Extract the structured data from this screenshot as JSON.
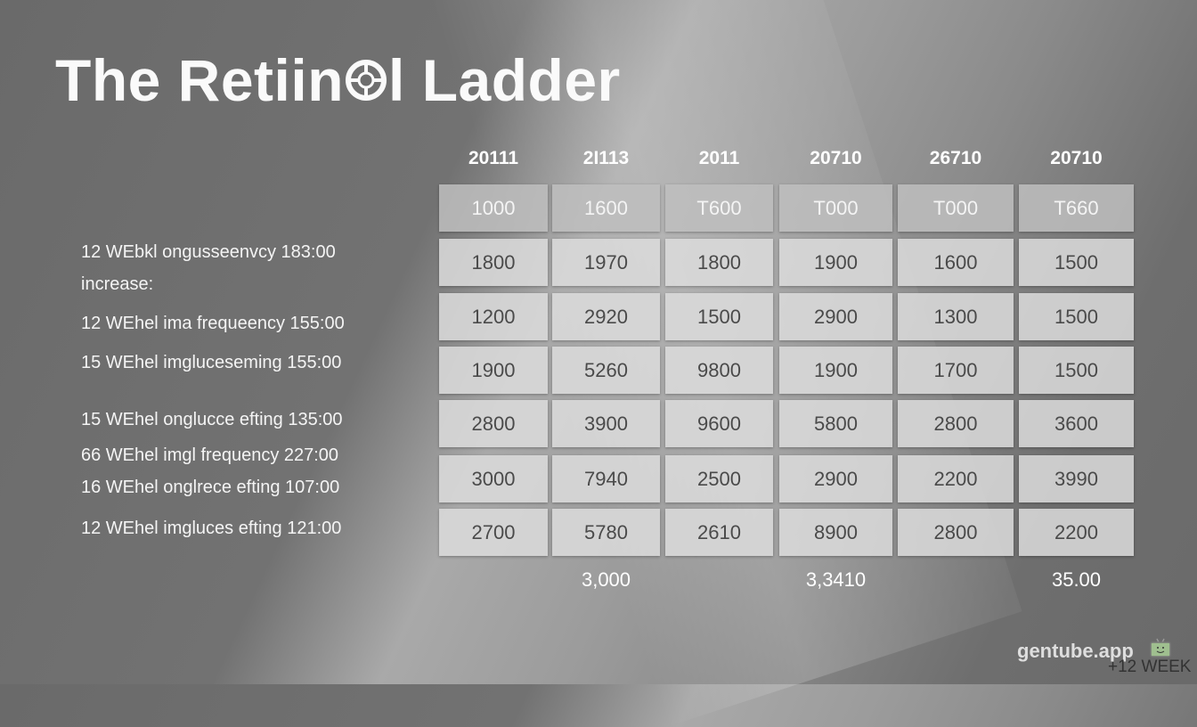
{
  "title": {
    "before_icon": "The Retiin",
    "after_icon": "l Ladder",
    "icon": "wheel-icon"
  },
  "row_labels": [
    "12 WEbkl ongusseenvcy 183:00",
    "increase:",
    "12 WEhel ima frequeency 155:00",
    "15 WEhel imgluceseming 155:00",
    "15 WEhel onglucce efting 135:00",
    "66 WEhel imgl frequency 227:00",
    "16 WEhel onglrece efting 107:00",
    "12 WEhel imgluces efting 121:00"
  ],
  "chart_data": {
    "type": "table",
    "columns": [
      "20111",
      "2I113",
      "2011",
      "20710",
      "26710",
      "20710"
    ],
    "rows": [
      [
        "1000",
        "1600",
        "T600",
        "T000",
        "T000",
        "T660"
      ],
      [
        "1800",
        "1970",
        "1800",
        "1900",
        "1600",
        "1500"
      ],
      [
        "1200",
        "2920",
        "1500",
        "2900",
        "1300",
        "1500"
      ],
      [
        "1900",
        "5260",
        "9800",
        "1900",
        "1700",
        "1500"
      ],
      [
        "2800",
        "3900",
        "9600",
        "5800",
        "2800",
        "3600"
      ],
      [
        "3000",
        "7940",
        "2500",
        "2900",
        "2200",
        "3990"
      ],
      [
        "2700",
        "5780",
        "2610",
        "8900",
        "2800",
        "2200"
      ]
    ],
    "totals": [
      "3,000",
      "3,3410",
      "35.00"
    ]
  },
  "watermark": {
    "brand": "gentube.app",
    "icon": "tv-icon",
    "caption": "+12 WEEK"
  },
  "colors": {
    "background": "#6e6e6e",
    "cell": "#dcdcdc",
    "text": "#ffffff"
  }
}
